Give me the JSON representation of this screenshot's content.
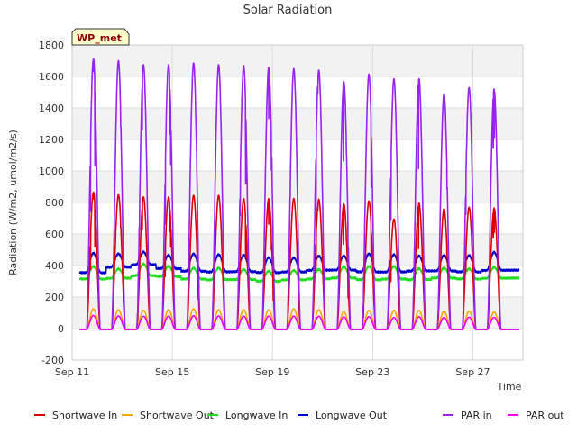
{
  "chart_data": {
    "type": "line",
    "title": "Solar Radiation",
    "xlabel": "Time",
    "ylabel": "Radiation (W/m2, umol/m2/s)",
    "badge": "WP_met",
    "ylim": [
      -200,
      1800
    ],
    "yticks": [
      -200,
      0,
      200,
      400,
      600,
      800,
      1000,
      1200,
      1400,
      1600,
      1800
    ],
    "xlim": [
      11,
      29
    ],
    "xticks": [
      {
        "value": 11,
        "label": "Sep 11"
      },
      {
        "value": 15,
        "label": "Sep 15"
      },
      {
        "value": 19,
        "label": "Sep 19"
      },
      {
        "value": 23,
        "label": "Sep 23"
      },
      {
        "value": 27,
        "label": "Sep 27"
      }
    ],
    "grid": true,
    "legend_position": "bottom",
    "data_start_day": 11.3,
    "data_end_day": 28.85,
    "daily_peaks": {
      "days": [
        11.85,
        12.85,
        13.85,
        14.85,
        15.85,
        16.85,
        17.85,
        18.85,
        19.85,
        20.85,
        21.85,
        22.85,
        23.85,
        24.85,
        25.85,
        26.85,
        27.85
      ],
      "par_in": [
        1720,
        1705,
        1680,
        1680,
        1690,
        1680,
        1675,
        1665,
        1655,
        1645,
        1570,
        1620,
        1590,
        1590,
        1495,
        1535,
        1525
      ],
      "shortwave_in": [
        870,
        855,
        840,
        840,
        850,
        850,
        830,
        830,
        830,
        825,
        795,
        815,
        700,
        800,
        765,
        775,
        770
      ],
      "shortwave_out": [
        130,
        125,
        120,
        125,
        130,
        125,
        125,
        125,
        130,
        125,
        110,
        120,
        120,
        120,
        115,
        115,
        110
      ],
      "par_out": [
        88,
        85,
        83,
        84,
        86,
        85,
        84,
        84,
        84,
        83,
        78,
        80,
        75,
        80,
        75,
        77,
        76
      ]
    },
    "longwave_in_daily": {
      "base": [
        315,
        320,
        335,
        330,
        315,
        310,
        310,
        300,
        310,
        315,
        320,
        310,
        315,
        310,
        320,
        315,
        320
      ],
      "peak": [
        395,
        380,
        410,
        395,
        385,
        385,
        375,
        365,
        370,
        375,
        390,
        395,
        395,
        380,
        385,
        380,
        390
      ]
    },
    "longwave_out_daily": {
      "base": [
        355,
        390,
        405,
        380,
        365,
        360,
        360,
        355,
        360,
        370,
        370,
        360,
        360,
        365,
        365,
        360,
        370
      ],
      "peak": [
        480,
        475,
        485,
        465,
        475,
        470,
        465,
        450,
        450,
        460,
        460,
        475,
        470,
        460,
        465,
        465,
        485
      ]
    },
    "series": [
      {
        "name": "Shortwave In",
        "key": "shortwave_in",
        "color": "#dd0000"
      },
      {
        "name": "Shortwave Out",
        "key": "shortwave_out",
        "color": "#ffa500"
      },
      {
        "name": "Longwave In",
        "key": "longwave_in",
        "color": "#22dd22"
      },
      {
        "name": "Longwave Out",
        "key": "longwave_out",
        "color": "#0000cc"
      },
      {
        "name": "PAR in",
        "key": "par_in",
        "color": "#9922ee"
      },
      {
        "name": "PAR out",
        "key": "par_out",
        "color": "#ee00ee"
      }
    ]
  }
}
